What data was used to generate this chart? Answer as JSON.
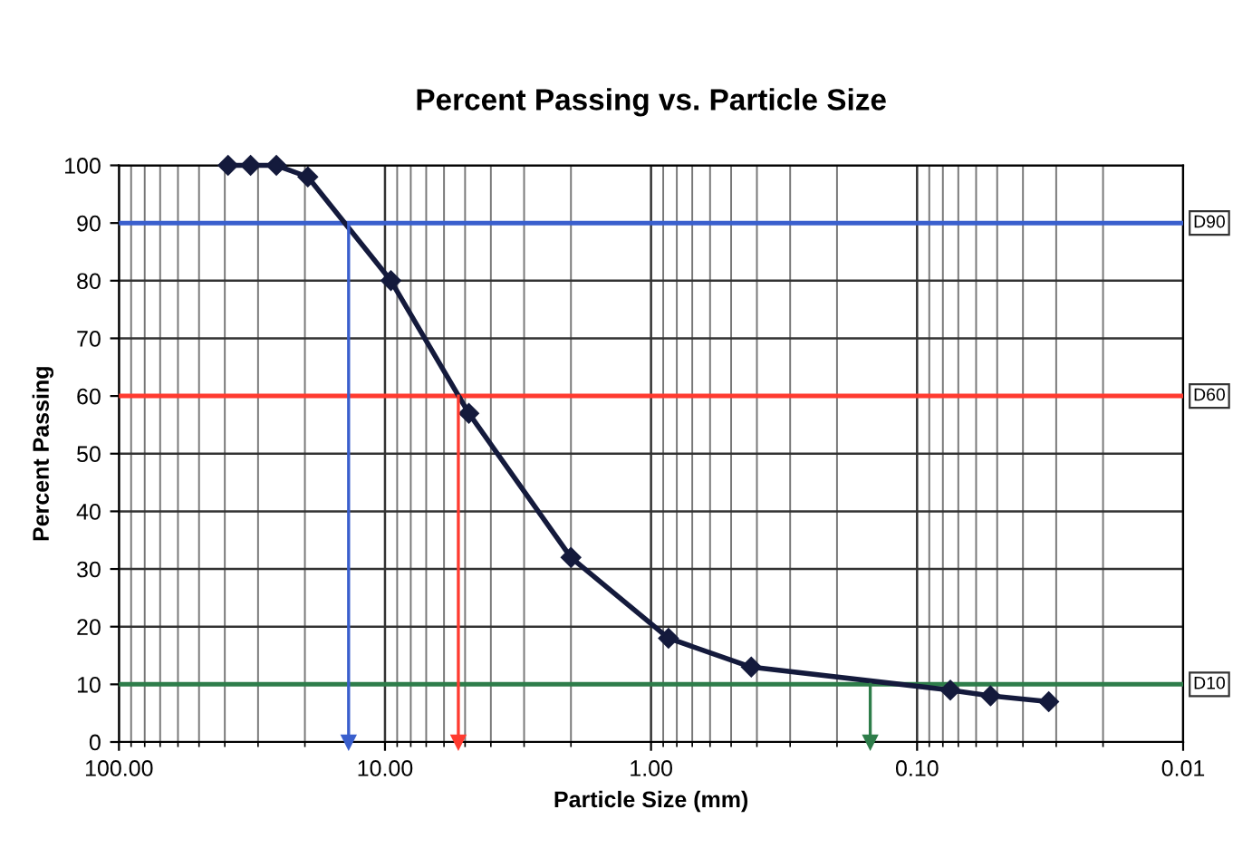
{
  "chart_data": {
    "type": "line",
    "title": "Percent Passing vs. Particle Size",
    "xlabel": "Particle Size (mm)",
    "ylabel": "Percent Passing",
    "log": "x",
    "grid": true,
    "legend": false,
    "marker": "diamond",
    "line_style": "solid",
    "xlim": [
      100,
      0.01
    ],
    "xticks": [
      {
        "value": 100,
        "label": "100.00"
      },
      {
        "value": 10,
        "label": "10.00"
      },
      {
        "value": 1,
        "label": "1.00"
      },
      {
        "value": 0.1,
        "label": "0.10"
      },
      {
        "value": 0.01,
        "label": "0.01"
      }
    ],
    "ylim": [
      0,
      100
    ],
    "yticks": [
      0,
      10,
      20,
      30,
      40,
      50,
      60,
      70,
      80,
      90,
      100
    ],
    "series": [
      {
        "color": "#141a3c",
        "x": [
          38.9,
          32,
          25.6,
          19.5,
          9.5,
          4.84,
          2.0,
          0.86,
          0.42,
          0.075,
          0.053,
          0.032
        ],
        "values": [
          100,
          100,
          100,
          98,
          80,
          57,
          32,
          18,
          13,
          9,
          8,
          7
        ]
      },
      {
        "color": "#3a5fcd",
        "x": [
          13.7,
          13.7
        ],
        "values": [
          90,
          0
        ],
        "marker": "triangle"
      },
      {
        "color": "#ff3b30",
        "x": [
          5.3,
          5.3
        ],
        "values": [
          60,
          0
        ],
        "marker": "triangle"
      },
      {
        "color": "#2e7d4a",
        "x": [
          0.15,
          0.15
        ],
        "values": [
          10,
          0
        ],
        "marker": "triangle"
      }
    ],
    "ref_lines": [
      {
        "axis": "y",
        "value": 90,
        "label": "D90",
        "color": "#3a5fcd"
      },
      {
        "axis": "y",
        "value": 60,
        "label": "D60",
        "color": "#ff3b30"
      },
      {
        "axis": "y",
        "value": 10,
        "label": "D10",
        "color": "#2e7d4a"
      }
    ]
  }
}
